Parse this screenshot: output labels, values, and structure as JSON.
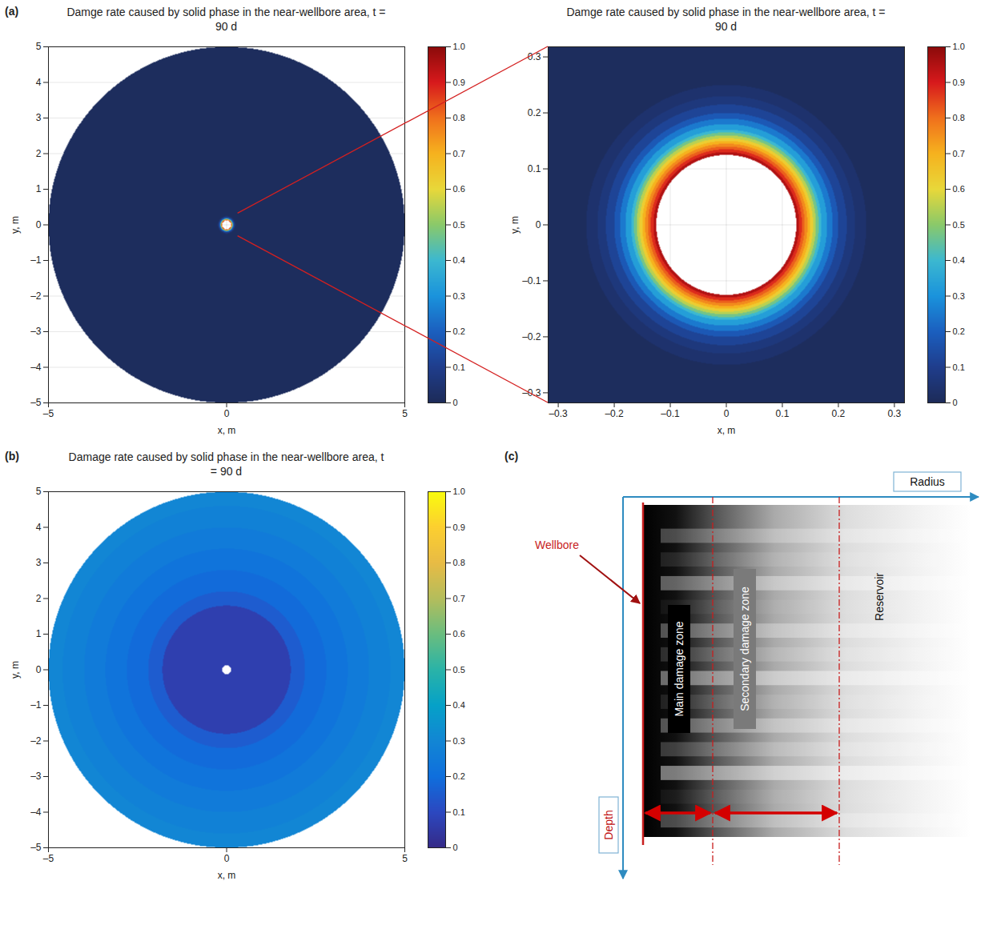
{
  "chart_data": [
    {
      "type": "heatmap",
      "panel_label": "(a)",
      "title": "Damge rate caused by solid phase in the near-wellbore area, t = 90 d",
      "x_label": "x, m",
      "y_label": "y, m",
      "xlim": [
        -5,
        5
      ],
      "ylim": [
        -5,
        5
      ],
      "xticks": [
        {
          "value": -5,
          "label": "–5"
        },
        0,
        5
      ],
      "yticks": [
        {
          "value": -5,
          "label": "–5"
        },
        {
          "value": -4,
          "label": "–4"
        },
        {
          "value": -3,
          "label": "–3"
        },
        {
          "value": -2,
          "label": "–2"
        },
        {
          "value": -1,
          "label": "–1"
        },
        0,
        1,
        2,
        3,
        4,
        5
      ],
      "grid": true,
      "rings": {
        "inner_radius": [
          0.125,
          0.13,
          0.135,
          0.14,
          0.145,
          0.15,
          0.155,
          0.16,
          0.165,
          0.17,
          0.18,
          0.19,
          0.2,
          0.215,
          0.23,
          0.25
        ],
        "outer_radius": [
          0.13,
          0.135,
          0.14,
          0.145,
          0.15,
          0.155,
          0.16,
          0.165,
          0.17,
          0.18,
          0.19,
          0.2,
          0.215,
          0.23,
          0.25,
          5
        ],
        "damage": [
          0.95,
          0.88,
          0.82,
          0.76,
          0.7,
          0.63,
          0.55,
          0.47,
          0.4,
          0.33,
          0.25,
          0.18,
          0.12,
          0.07,
          0.04,
          0.01
        ]
      },
      "colorbar": {
        "range": [
          0,
          1
        ],
        "ticks": [
          0,
          0.1,
          0.2,
          0.3,
          0.4,
          0.5,
          0.6,
          0.7,
          0.8,
          0.9,
          {
            "value": 1,
            "label": "1.0"
          }
        ],
        "colors": [
          "#1d2b58",
          "#1f3d8c",
          "#1b5fbf",
          "#1a93dc",
          "#3cb8d0",
          "#8ac96a",
          "#e8d83a",
          "#f6b21e",
          "#f0701c",
          "#d7191c",
          "#8b0a0a"
        ]
      }
    },
    {
      "type": "heatmap",
      "title": "Damge rate caused by solid phase in the near-wellbore area, t = 90 d",
      "x_label": "x, m",
      "y_label": "y, m",
      "xlim": [
        -0.318,
        0.318
      ],
      "ylim": [
        -0.318,
        0.318
      ],
      "xticks": [
        {
          "value": -0.3,
          "label": "–0.3"
        },
        {
          "value": -0.2,
          "label": "–0.2"
        },
        {
          "value": -0.1,
          "label": "–0.1"
        },
        0,
        0.1,
        0.2,
        0.3
      ],
      "yticks": [
        {
          "value": -0.3,
          "label": "–0.3"
        },
        {
          "value": -0.2,
          "label": "–0.2"
        },
        {
          "value": -0.1,
          "label": "–0.1"
        },
        0,
        0.1,
        0.2,
        0.3
      ],
      "grid": true,
      "rings": {
        "inner_radius": [
          0.125,
          0.13,
          0.135,
          0.14,
          0.145,
          0.15,
          0.155,
          0.16,
          0.165,
          0.17,
          0.18,
          0.19,
          0.2,
          0.215,
          0.23,
          0.25
        ],
        "outer_radius": [
          0.13,
          0.135,
          0.14,
          0.145,
          0.15,
          0.155,
          0.16,
          0.165,
          0.17,
          0.18,
          0.19,
          0.2,
          0.215,
          0.23,
          0.25,
          5
        ],
        "damage": [
          0.95,
          0.88,
          0.82,
          0.76,
          0.7,
          0.63,
          0.55,
          0.47,
          0.4,
          0.33,
          0.25,
          0.18,
          0.12,
          0.07,
          0.04,
          0.01
        ]
      },
      "colorbar": {
        "range": [
          0,
          1
        ],
        "ticks": [
          0,
          0.1,
          0.2,
          0.3,
          0.4,
          0.5,
          0.6,
          0.7,
          0.8,
          0.9,
          {
            "value": 1,
            "label": "1.0"
          }
        ],
        "colors": [
          "#1d2b58",
          "#1f3d8c",
          "#1b5fbf",
          "#1a93dc",
          "#3cb8d0",
          "#8ac96a",
          "#e8d83a",
          "#f6b21e",
          "#f0701c",
          "#d7191c",
          "#8b0a0a"
        ]
      }
    },
    {
      "type": "heatmap",
      "panel_label": "(b)",
      "title": "Damage rate caused by solid phase in the near-wellbore area, t = 90 d",
      "x_label": "x, m",
      "y_label": "y, m",
      "xlim": [
        -5,
        5
      ],
      "ylim": [
        -5,
        5
      ],
      "xticks": [
        {
          "value": -5,
          "label": "–5"
        },
        0,
        5
      ],
      "yticks": [
        {
          "value": -5,
          "label": "–5"
        },
        {
          "value": -4,
          "label": "–4"
        },
        {
          "value": -3,
          "label": "–3"
        },
        {
          "value": -2,
          "label": "–2"
        },
        {
          "value": -1,
          "label": "–1"
        },
        0,
        1,
        2,
        3,
        4,
        5
      ],
      "grid": false,
      "rings": {
        "inner_radius": [
          0.125,
          1.8,
          2.2,
          2.8,
          3.4,
          4.0,
          4.6
        ],
        "outer_radius": [
          1.8,
          2.2,
          2.8,
          3.4,
          4.0,
          4.6,
          5
        ],
        "damage": [
          0.07,
          0.15,
          0.19,
          0.22,
          0.25,
          0.28,
          0.3
        ]
      },
      "colorbar": {
        "range": [
          0,
          1
        ],
        "ticks": [
          0,
          0.1,
          0.2,
          0.3,
          0.4,
          0.5,
          0.6,
          0.7,
          0.8,
          0.9,
          {
            "value": 1,
            "label": "1.0"
          }
        ],
        "colors": [
          "#352a87",
          "#2c48c0",
          "#0f6fdd",
          "#1286d4",
          "#06a1c8",
          "#2ab3a8",
          "#6abd7f",
          "#b4bd5c",
          "#e8bb45",
          "#fccf30",
          "#f9fb0e"
        ]
      }
    }
  ],
  "diagram": {
    "panel_label": "(c)",
    "x_axis_label": "Radius",
    "y_axis_label": "Depth",
    "labels": {
      "wellbore": "Wellbore",
      "main_zone": "Main damage zone",
      "secondary_zone": "Secondary damage zone",
      "reservoir": "Reservoir"
    }
  }
}
